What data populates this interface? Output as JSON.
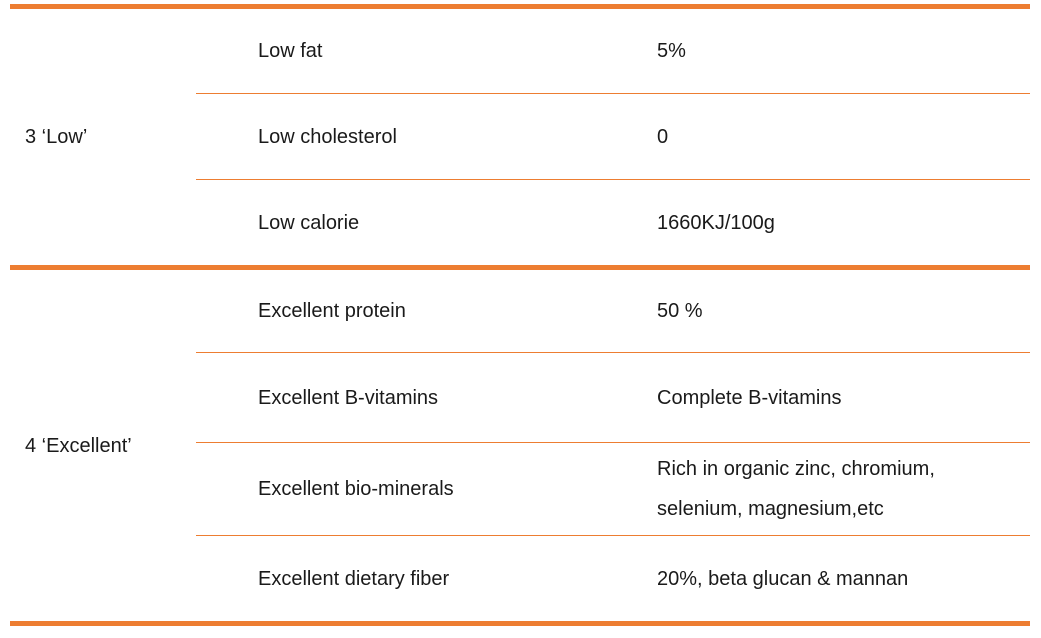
{
  "accent_color": "#ED7D31",
  "text_color": "#1a1a1a",
  "table": {
    "groups": [
      {
        "label": "3 ‘Low’",
        "rows": [
          {
            "name": "Low fat",
            "value": "5%"
          },
          {
            "name": "Low cholesterol",
            "value": "0"
          },
          {
            "name": "Low calorie",
            "value": "1660KJ/100g"
          }
        ]
      },
      {
        "label": "4 ‘Excellent’",
        "rows": [
          {
            "name": "Excellent protein",
            "value": "50 %"
          },
          {
            "name": "Excellent B-vitamins",
            "value": "Complete B-vitamins"
          },
          {
            "name": "Excellent bio-minerals",
            "value": "Rich in organic zinc, chromium, selenium, magnesium,etc"
          },
          {
            "name": "Excellent dietary fiber",
            "value": "20%, beta glucan & mannan"
          }
        ]
      }
    ]
  }
}
